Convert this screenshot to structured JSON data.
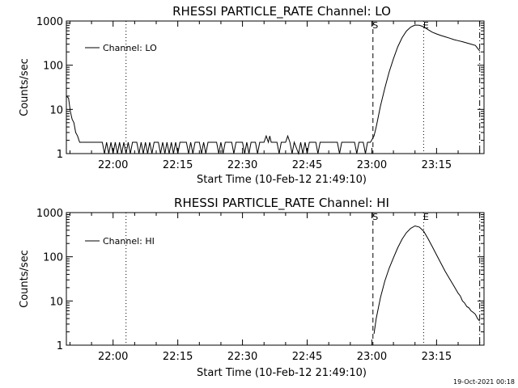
{
  "footer": {
    "timestamp": "19-Oct-2021 00:18"
  },
  "chart_data": [
    {
      "type": "line",
      "title": "RHESSI PARTICLE_RATE Channel: LO",
      "xlabel": "Start Time (10-Feb-12 21:49:10)",
      "ylabel": "Counts/sec",
      "yscale": "log",
      "ylim": [
        1,
        1000
      ],
      "xlim": [
        "21:49:10",
        "23:26:00"
      ],
      "x_ticks": [
        "22:00",
        "22:15",
        "22:30",
        "22:45",
        "23:00",
        "23:15"
      ],
      "y_ticks": [
        "1",
        "10",
        "100",
        "1000"
      ],
      "legend": {
        "position": "top-left",
        "entries": [
          "Channel: LO"
        ]
      },
      "markers": [
        {
          "label": "",
          "time": "22:03:00",
          "style": "dotted"
        },
        {
          "label": "S",
          "time": "23:00:15",
          "style": "dashed"
        },
        {
          "label": "E",
          "time": "23:12:00",
          "style": "dotted"
        },
        {
          "label": "",
          "time": "23:25:00",
          "style": "dash-dot"
        }
      ],
      "series": [
        {
          "name": "Channel: LO",
          "points": [
            [
              "21:49:10",
              20
            ],
            [
              "21:49:40",
              18
            ],
            [
              "21:50:05",
              9
            ],
            [
              "21:50:30",
              6
            ],
            [
              "21:50:55",
              5
            ],
            [
              "21:51:20",
              3
            ],
            [
              "21:51:45",
              2.5
            ],
            [
              "21:52:15",
              1.8
            ],
            [
              "21:57:30",
              1.8
            ],
            [
              "21:58:00",
              1
            ],
            [
              "21:58:30",
              1.8
            ],
            [
              "21:59:00",
              1
            ],
            [
              "21:59:30",
              1.8
            ],
            [
              "22:00:00",
              1
            ],
            [
              "22:00:30",
              1.8
            ],
            [
              "22:01:00",
              1
            ],
            [
              "22:01:30",
              1.8
            ],
            [
              "22:02:00",
              1
            ],
            [
              "22:02:30",
              1.8
            ],
            [
              "22:03:00",
              1
            ],
            [
              "22:03:30",
              1.8
            ],
            [
              "22:04:00",
              1
            ],
            [
              "22:04:30",
              1.8
            ],
            [
              "22:05:30",
              1.8
            ],
            [
              "22:06:00",
              1
            ],
            [
              "22:06:30",
              1.8
            ],
            [
              "22:07:00",
              1
            ],
            [
              "22:07:30",
              1.8
            ],
            [
              "22:08:00",
              1
            ],
            [
              "22:08:30",
              1.8
            ],
            [
              "22:09:00",
              1
            ],
            [
              "22:09:30",
              1.8
            ],
            [
              "22:10:30",
              1.8
            ],
            [
              "22:11:00",
              1
            ],
            [
              "22:11:30",
              1.8
            ],
            [
              "22:12:00",
              1
            ],
            [
              "22:12:30",
              1.8
            ],
            [
              "22:13:00",
              1
            ],
            [
              "22:13:30",
              1.8
            ],
            [
              "22:14:00",
              1
            ],
            [
              "22:14:30",
              1.8
            ],
            [
              "22:15:00",
              1
            ],
            [
              "22:15:30",
              1.8
            ],
            [
              "22:17:00",
              1.8
            ],
            [
              "22:17:30",
              1
            ],
            [
              "22:18:00",
              1.8
            ],
            [
              "22:18:30",
              1
            ],
            [
              "22:19:00",
              1.8
            ],
            [
              "22:20:00",
              1.8
            ],
            [
              "22:20:30",
              1
            ],
            [
              "22:21:00",
              1.8
            ],
            [
              "22:21:30",
              1
            ],
            [
              "22:22:00",
              1.8
            ],
            [
              "22:24:00",
              1.8
            ],
            [
              "22:24:30",
              1
            ],
            [
              "22:25:00",
              1.8
            ],
            [
              "22:25:30",
              1
            ],
            [
              "22:26:00",
              1.8
            ],
            [
              "22:27:30",
              1.8
            ],
            [
              "22:28:00",
              1
            ],
            [
              "22:28:30",
              1.8
            ],
            [
              "22:30:00",
              1.8
            ],
            [
              "22:30:30",
              1
            ],
            [
              "22:31:00",
              1.8
            ],
            [
              "22:31:30",
              1
            ],
            [
              "22:32:00",
              1.8
            ],
            [
              "22:33:00",
              1.8
            ],
            [
              "22:33:30",
              1
            ],
            [
              "22:34:00",
              1.8
            ],
            [
              "22:35:00",
              1.8
            ],
            [
              "22:35:30",
              2.5
            ],
            [
              "22:36:00",
              1.8
            ],
            [
              "22:36:20",
              2.5
            ],
            [
              "22:36:40",
              1.8
            ],
            [
              "22:38:00",
              1.8
            ],
            [
              "22:38:30",
              1
            ],
            [
              "22:39:00",
              1.8
            ],
            [
              "22:40:00",
              1.8
            ],
            [
              "22:40:30",
              2.5
            ],
            [
              "22:41:00",
              1.8
            ],
            [
              "22:41:30",
              1
            ],
            [
              "22:42:00",
              1.8
            ],
            [
              "22:43:00",
              1
            ],
            [
              "22:43:30",
              1.8
            ],
            [
              "22:44:00",
              1
            ],
            [
              "22:44:30",
              1.8
            ],
            [
              "22:45:00",
              1
            ],
            [
              "22:45:30",
              1.8
            ],
            [
              "22:47:00",
              1.8
            ],
            [
              "22:47:30",
              1
            ],
            [
              "22:48:00",
              1.8
            ],
            [
              "22:52:00",
              1.8
            ],
            [
              "22:52:30",
              1
            ],
            [
              "22:53:00",
              1.8
            ],
            [
              "22:56:00",
              1.8
            ],
            [
              "22:56:30",
              1
            ],
            [
              "22:57:00",
              1.8
            ],
            [
              "22:58:00",
              1.8
            ],
            [
              "22:58:30",
              1
            ],
            [
              "22:59:00",
              1.8
            ],
            [
              "22:59:40",
              1.8
            ],
            [
              "23:00:30",
              2.5
            ],
            [
              "23:01:00",
              4
            ],
            [
              "23:02:00",
              12
            ],
            [
              "23:03:00",
              30
            ],
            [
              "23:04:00",
              70
            ],
            [
              "23:05:00",
              140
            ],
            [
              "23:06:00",
              260
            ],
            [
              "23:07:00",
              420
            ],
            [
              "23:08:00",
              590
            ],
            [
              "23:09:00",
              730
            ],
            [
              "23:10:00",
              810
            ],
            [
              "23:11:00",
              800
            ],
            [
              "23:12:00",
              740
            ],
            [
              "23:13:00",
              640
            ],
            [
              "23:14:00",
              560
            ],
            [
              "23:15:00",
              510
            ],
            [
              "23:16:00",
              470
            ],
            [
              "23:17:00",
              440
            ],
            [
              "23:18:00",
              410
            ],
            [
              "23:19:00",
              380
            ],
            [
              "23:20:00",
              360
            ],
            [
              "23:21:00",
              340
            ],
            [
              "23:22:00",
              320
            ],
            [
              "23:23:00",
              300
            ],
            [
              "23:24:00",
              280
            ],
            [
              "23:25:00",
              210
            ]
          ]
        }
      ]
    },
    {
      "type": "line",
      "title": "RHESSI PARTICLE_RATE Channel: HI",
      "xlabel": "Start Time (10-Feb-12 21:49:10)",
      "ylabel": "Counts/sec",
      "yscale": "log",
      "ylim": [
        1,
        1000
      ],
      "xlim": [
        "21:49:10",
        "23:26:00"
      ],
      "x_ticks": [
        "22:00",
        "22:15",
        "22:30",
        "22:45",
        "23:00",
        "23:15"
      ],
      "y_ticks": [
        "1",
        "10",
        "100",
        "1000"
      ],
      "legend": {
        "position": "top-left",
        "entries": [
          "Channel: HI"
        ]
      },
      "markers": [
        {
          "label": "",
          "time": "22:03:00",
          "style": "dotted"
        },
        {
          "label": "S",
          "time": "23:00:15",
          "style": "dashed"
        },
        {
          "label": "E",
          "time": "23:12:00",
          "style": "dotted"
        },
        {
          "label": "",
          "time": "23:25:00",
          "style": "dash-dot"
        }
      ],
      "series": [
        {
          "name": "Channel: HI",
          "points": [
            [
              "23:00:30",
              1.8
            ],
            [
              "23:01:00",
              4
            ],
            [
              "23:02:00",
              12
            ],
            [
              "23:03:00",
              28
            ],
            [
              "23:04:00",
              55
            ],
            [
              "23:05:00",
              95
            ],
            [
              "23:06:00",
              160
            ],
            [
              "23:07:00",
              250
            ],
            [
              "23:08:00",
              350
            ],
            [
              "23:09:00",
              440
            ],
            [
              "23:10:00",
              500
            ],
            [
              "23:11:00",
              470
            ],
            [
              "23:12:00",
              380
            ],
            [
              "23:13:00",
              260
            ],
            [
              "23:14:00",
              170
            ],
            [
              "23:15:00",
              110
            ],
            [
              "23:16:00",
              72
            ],
            [
              "23:17:00",
              47
            ],
            [
              "23:18:00",
              32
            ],
            [
              "23:19:00",
              22
            ],
            [
              "23:20:00",
              15
            ],
            [
              "23:20:30",
              13
            ],
            [
              "23:21:00",
              10
            ],
            [
              "23:21:30",
              9
            ],
            [
              "23:22:00",
              7.5
            ],
            [
              "23:22:30",
              7
            ],
            [
              "23:23:00",
              6
            ],
            [
              "23:23:30",
              5.5
            ],
            [
              "23:24:00",
              5
            ],
            [
              "23:24:30",
              4
            ],
            [
              "23:25:00",
              3.5
            ]
          ]
        }
      ]
    }
  ]
}
